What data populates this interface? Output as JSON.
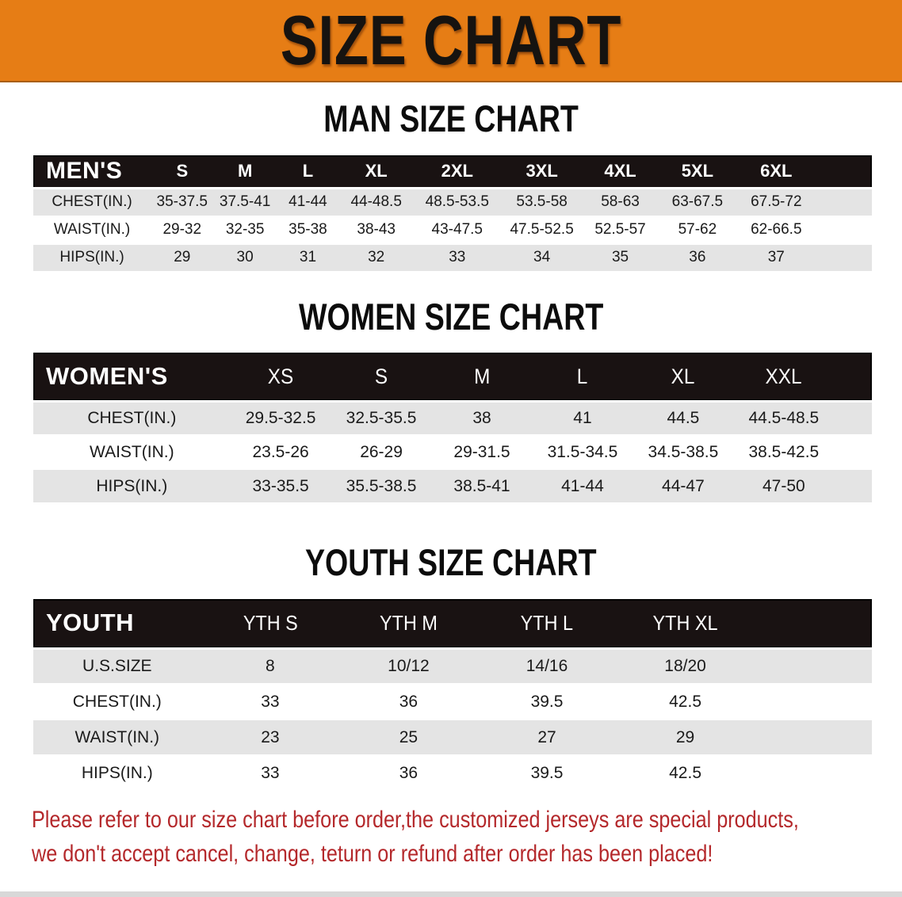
{
  "banner": {
    "title": "SIZE CHART"
  },
  "colors": {
    "banner_orange": "#E67D15",
    "header_black": "#191212",
    "row_gray": "#E4E4E4",
    "disclaimer_red": "#B4282B"
  },
  "chart_data": [
    {
      "type": "table",
      "title": "MAN SIZE CHART",
      "header_label": "MEN'S",
      "columns": [
        "S",
        "M",
        "L",
        "XL",
        "2XL",
        "3XL",
        "4XL",
        "5XL",
        "6XL"
      ],
      "rows": [
        {
          "label": "CHEST(IN.)",
          "values": [
            "35-37.5",
            "37.5-41",
            "41-44",
            "44-48.5",
            "48.5-53.5",
            "53.5-58",
            "58-63",
            "63-67.5",
            "67.5-72"
          ]
        },
        {
          "label": "WAIST(IN.)",
          "values": [
            "29-32",
            "32-35",
            "35-38",
            "38-43",
            "43-47.5",
            "47.5-52.5",
            "52.5-57",
            "57-62",
            "62-66.5"
          ]
        },
        {
          "label": "HIPS(IN.)",
          "values": [
            "29",
            "30",
            "31",
            "32",
            "33",
            "34",
            "35",
            "36",
            "37"
          ]
        }
      ]
    },
    {
      "type": "table",
      "title": "WOMEN SIZE CHART",
      "header_label": "WOMEN'S",
      "columns": [
        "XS",
        "S",
        "M",
        "L",
        "XL",
        "XXL"
      ],
      "rows": [
        {
          "label": "CHEST(IN.)",
          "values": [
            "29.5-32.5",
            "32.5-35.5",
            "38",
            "41",
            "44.5",
            "44.5-48.5"
          ]
        },
        {
          "label": "WAIST(IN.)",
          "values": [
            "23.5-26",
            "26-29",
            "29-31.5",
            "31.5-34.5",
            "34.5-38.5",
            "38.5-42.5"
          ]
        },
        {
          "label": "HIPS(IN.)",
          "values": [
            "33-35.5",
            "35.5-38.5",
            "38.5-41",
            "41-44",
            "44-47",
            "47-50"
          ]
        }
      ]
    },
    {
      "type": "table",
      "title": "YOUTH SIZE CHART",
      "header_label": "YOUTH",
      "columns": [
        "YTH S",
        "YTH M",
        "YTH L",
        "YTH XL"
      ],
      "rows": [
        {
          "label": "U.S.SIZE",
          "values": [
            "8",
            "10/12",
            "14/16",
            "18/20"
          ]
        },
        {
          "label": "CHEST(IN.)",
          "values": [
            "33",
            "36",
            "39.5",
            "42.5"
          ]
        },
        {
          "label": "WAIST(IN.)",
          "values": [
            "23",
            "25",
            "27",
            "29"
          ]
        },
        {
          "label": "HIPS(IN.)",
          "values": [
            "33",
            "36",
            "39.5",
            "42.5"
          ]
        }
      ]
    }
  ],
  "disclaimer": {
    "line1": "Please refer to our size chart before order,the customized jerseys are special products,",
    "line2": "we don't accept cancel, change, teturn or refund after order has been placed!"
  }
}
